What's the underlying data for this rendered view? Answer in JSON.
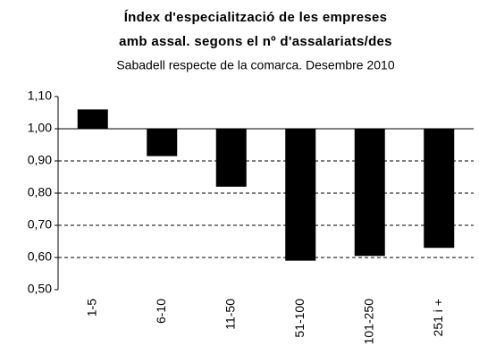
{
  "chart_data": {
    "type": "bar",
    "title": "Índex d'especialització de les empreses",
    "title_line2": "amb assal. segons el nº d'assalariats/des",
    "subtitle": "Sabadell respecte de la comarca. Desembre 2010",
    "categories": [
      "1-5",
      "6-10",
      "11-50",
      "51-100",
      "101-250",
      "251 i +"
    ],
    "values": [
      1.06,
      0.915,
      0.82,
      0.59,
      0.605,
      0.63
    ],
    "color": "#000000",
    "baseline": 1,
    "ylim": [
      0.5,
      1.1
    ],
    "yticks": [
      {
        "value": 0.5,
        "label": "0,50"
      },
      {
        "value": 0.6,
        "label": "0,60"
      },
      {
        "value": 0.7,
        "label": "0,70"
      },
      {
        "value": 0.8,
        "label": "0,80"
      },
      {
        "value": 0.9,
        "label": "0,90"
      },
      {
        "value": 1.0,
        "label": "1,00"
      },
      {
        "value": 1.1,
        "label": "1,10"
      }
    ],
    "grid": true
  }
}
